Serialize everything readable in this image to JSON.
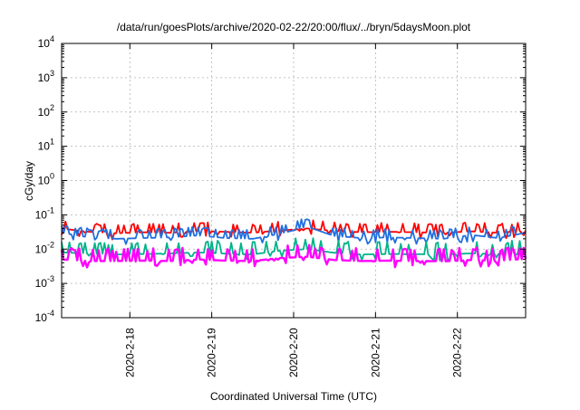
{
  "chart_data": {
    "type": "line",
    "title": "/data/run/goesPlots/archive/2020-02-22/20:00/flux/../bryn/5daysMoon.plot",
    "xlabel": "Coordinated Universal Time (UTC)",
    "ylabel": "cGy/day",
    "y_scale": "log",
    "ylim": [
      0.0001,
      10000
    ],
    "y_ticks": [
      {
        "base": "10",
        "exp": "-4"
      },
      {
        "base": "10",
        "exp": "-3"
      },
      {
        "base": "10",
        "exp": "-2"
      },
      {
        "base": "10",
        "exp": "-1"
      },
      {
        "base": "10",
        "exp": "0"
      },
      {
        "base": "10",
        "exp": "1"
      },
      {
        "base": "10",
        "exp": "2"
      },
      {
        "base": "10",
        "exp": "3"
      },
      {
        "base": "10",
        "exp": "4"
      }
    ],
    "xlim": [
      "2020-02-17T04:00",
      "2020-02-22T20:00"
    ],
    "x_ticks": [
      "2020-2-18",
      "2020-2-19",
      "2020-2-20",
      "2020-2-21",
      "2020-2-22"
    ],
    "grid": true,
    "legend": "none",
    "series": [
      {
        "color": "#ff0000",
        "x": [
          "2020-02-17T04:00",
          "2020-02-17T12:00",
          "2020-02-17T20:00",
          "2020-02-18T04:00",
          "2020-02-18T12:00",
          "2020-02-18T20:00",
          "2020-02-19T04:00",
          "2020-02-19T12:00",
          "2020-02-19T20:00",
          "2020-02-20T04:00",
          "2020-02-20T12:00",
          "2020-02-20T20:00",
          "2020-02-21T04:00",
          "2020-02-21T12:00",
          "2020-02-21T20:00",
          "2020-02-22T04:00",
          "2020-02-22T12:00",
          "2020-02-22T20:00"
        ],
        "values": [
          0.04,
          0.032,
          0.029,
          0.031,
          0.03,
          0.034,
          0.032,
          0.03,
          0.035,
          0.04,
          0.034,
          0.031,
          0.032,
          0.031,
          0.03,
          0.033,
          0.03,
          0.035
        ]
      },
      {
        "color": "#1f6fe0",
        "x": [
          "2020-02-17T04:00",
          "2020-02-17T12:00",
          "2020-02-17T20:00",
          "2020-02-18T04:00",
          "2020-02-18T12:00",
          "2020-02-18T20:00",
          "2020-02-19T04:00",
          "2020-02-19T12:00",
          "2020-02-19T20:00",
          "2020-02-20T04:00",
          "2020-02-20T12:00",
          "2020-02-20T20:00",
          "2020-02-21T04:00",
          "2020-02-21T12:00",
          "2020-02-21T20:00",
          "2020-02-22T04:00",
          "2020-02-22T12:00",
          "2020-02-22T20:00"
        ],
        "values": [
          0.03,
          0.022,
          0.02,
          0.021,
          0.022,
          0.025,
          0.021,
          0.02,
          0.028,
          0.045,
          0.024,
          0.021,
          0.022,
          0.021,
          0.02,
          0.026,
          0.021,
          0.03
        ]
      },
      {
        "color": "#00b38a",
        "x": [
          "2020-02-17T04:00",
          "2020-02-17T12:00",
          "2020-02-17T20:00",
          "2020-02-18T04:00",
          "2020-02-18T12:00",
          "2020-02-18T20:00",
          "2020-02-19T04:00",
          "2020-02-19T12:00",
          "2020-02-19T20:00",
          "2020-02-20T04:00",
          "2020-02-20T12:00",
          "2020-02-20T20:00",
          "2020-02-21T04:00",
          "2020-02-21T12:00",
          "2020-02-21T20:00",
          "2020-02-22T04:00",
          "2020-02-22T12:00",
          "2020-02-22T20:00"
        ],
        "values": [
          0.008,
          0.0075,
          0.007,
          0.0072,
          0.0075,
          0.008,
          0.0074,
          0.007,
          0.009,
          0.01,
          0.0078,
          0.007,
          0.0072,
          0.0071,
          0.007,
          0.0075,
          0.0072,
          0.008
        ]
      },
      {
        "color": "#ff00ff",
        "x": [
          "2020-02-17T04:00",
          "2020-02-17T12:00",
          "2020-02-17T20:00",
          "2020-02-18T04:00",
          "2020-02-18T12:00",
          "2020-02-18T20:00",
          "2020-02-19T04:00",
          "2020-02-19T12:00",
          "2020-02-19T20:00",
          "2020-02-20T04:00",
          "2020-02-20T12:00",
          "2020-02-20T20:00",
          "2020-02-21T04:00",
          "2020-02-21T12:00",
          "2020-02-21T20:00",
          "2020-02-22T04:00",
          "2020-02-22T12:00",
          "2020-02-22T20:00"
        ],
        "values": [
          0.005,
          0.0045,
          0.0045,
          0.0046,
          0.0045,
          0.005,
          0.0046,
          0.0045,
          0.0055,
          0.006,
          0.0048,
          0.0045,
          0.0046,
          0.0045,
          0.0044,
          0.0048,
          0.0046,
          0.0052
        ]
      }
    ]
  }
}
